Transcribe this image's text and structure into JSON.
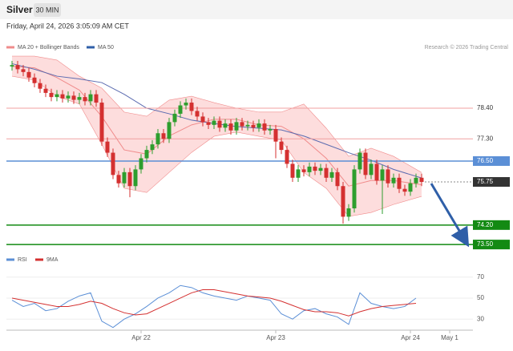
{
  "header": {
    "title": "Silver",
    "timeframe": "30 MIN",
    "timestamp": "Friday, April 24, 2026 3:05:09 AM CET",
    "credit": "Research © 2026 Trading Central"
  },
  "chart_data": [
    {
      "type": "candlestick",
      "xlim": [
        -1,
        79
      ],
      "ylim": [
        73.36,
        80.56
      ],
      "up_color": "#2e9e2e",
      "down_color": "#d43030",
      "open": [
        79.9,
        79.95,
        79.8,
        79.7,
        79.5,
        79.3,
        79.1,
        78.95,
        78.8,
        78.9,
        78.75,
        78.85,
        78.7,
        78.8,
        78.65,
        78.9,
        78.6,
        77.2,
        76.8,
        76.0,
        75.7,
        76.1,
        75.6,
        76.2,
        76.6,
        76.9,
        77.1,
        77.5,
        77.3,
        77.9,
        78.2,
        78.5,
        78.6,
        78.3,
        78.1,
        77.9,
        77.8,
        77.95,
        77.7,
        77.85,
        77.6,
        77.9,
        77.75,
        77.8,
        77.7,
        77.85,
        77.6,
        77.65,
        77.2,
        76.9,
        76.4,
        75.9,
        76.2,
        76.1,
        76.3,
        76.15,
        76.25,
        75.9,
        76.1,
        75.6,
        74.5,
        74.8,
        76.2,
        76.8,
        76.0,
        76.4,
        75.8,
        76.2,
        75.7,
        75.9,
        75.5,
        75.4,
        75.7,
        75.9
      ],
      "high": [
        80.1,
        80.1,
        79.95,
        79.85,
        79.65,
        79.45,
        79.25,
        79.1,
        79.05,
        79.05,
        79.0,
        79.0,
        78.95,
        78.95,
        79.05,
        79.05,
        78.75,
        77.35,
        76.95,
        76.15,
        76.25,
        76.25,
        76.35,
        76.75,
        77.05,
        77.25,
        77.65,
        77.65,
        78.05,
        78.35,
        78.65,
        78.75,
        78.75,
        78.45,
        78.25,
        78.05,
        78.1,
        78.1,
        78.0,
        78.0,
        78.05,
        78.05,
        77.95,
        77.95,
        78.0,
        78.0,
        77.8,
        77.8,
        77.35,
        77.05,
        76.55,
        76.35,
        76.35,
        76.45,
        76.45,
        76.4,
        76.4,
        76.25,
        76.25,
        75.75,
        74.95,
        76.35,
        76.95,
        76.95,
        76.55,
        76.55,
        76.35,
        76.35,
        76.05,
        76.05,
        75.65,
        75.85,
        76.05,
        76.05
      ],
      "low": [
        79.75,
        79.65,
        79.55,
        79.35,
        79.15,
        78.95,
        78.8,
        78.65,
        78.65,
        78.6,
        78.6,
        78.55,
        78.55,
        78.5,
        78.5,
        78.45,
        77.05,
        76.65,
        75.85,
        75.55,
        75.55,
        75.2,
        75.45,
        76.05,
        76.45,
        76.75,
        76.95,
        77.15,
        77.15,
        77.75,
        78.05,
        78.35,
        78.15,
        77.95,
        77.75,
        77.65,
        77.65,
        77.55,
        77.55,
        77.45,
        77.45,
        77.6,
        77.6,
        77.55,
        77.55,
        77.45,
        77.45,
        76.6,
        76.75,
        76.25,
        75.75,
        75.75,
        75.95,
        75.95,
        76.0,
        76.0,
        75.75,
        75.75,
        75.45,
        74.25,
        74.35,
        74.65,
        76.05,
        75.85,
        75.85,
        75.65,
        74.6,
        75.55,
        75.55,
        75.35,
        75.25,
        75.25,
        75.55,
        75.6
      ],
      "close": [
        79.95,
        79.8,
        79.7,
        79.5,
        79.3,
        79.1,
        78.95,
        78.8,
        78.9,
        78.75,
        78.85,
        78.7,
        78.8,
        78.65,
        78.9,
        78.6,
        77.2,
        76.8,
        76.0,
        75.7,
        76.1,
        75.6,
        76.2,
        76.6,
        76.9,
        77.1,
        77.5,
        77.3,
        77.9,
        78.2,
        78.5,
        78.6,
        78.3,
        78.1,
        77.9,
        77.8,
        77.95,
        77.7,
        77.85,
        77.6,
        77.9,
        77.75,
        77.8,
        77.7,
        77.85,
        77.6,
        77.65,
        77.2,
        76.9,
        76.4,
        75.9,
        76.2,
        76.1,
        76.3,
        76.15,
        76.25,
        75.9,
        76.1,
        75.6,
        74.5,
        74.8,
        76.2,
        76.8,
        76.0,
        76.4,
        75.8,
        76.2,
        75.7,
        75.9,
        75.5,
        75.4,
        75.7,
        75.9,
        75.75
      ],
      "bands": {
        "name": "MA 20 + Bollinger Bands",
        "color": "#f08c8c",
        "fill": "#fdd5d5",
        "x": [
          0,
          4,
          8,
          12,
          16,
          20,
          24,
          28,
          32,
          36,
          40,
          44,
          48,
          52,
          56,
          60,
          64,
          68,
          73
        ],
        "upper": [
          80.27,
          80.27,
          80.13,
          79.55,
          79.12,
          78.26,
          78.11,
          78.69,
          78.83,
          78.6,
          78.4,
          78.26,
          78.26,
          78.55,
          77.68,
          76.67,
          76.96,
          76.67,
          76.09
        ],
        "middle": [
          79.9,
          79.85,
          79.5,
          79.05,
          78.1,
          76.9,
          76.75,
          77.4,
          77.8,
          78.0,
          78.0,
          77.8,
          77.75,
          77.3,
          76.6,
          75.6,
          75.8,
          75.8,
          75.65
        ],
        "lower": [
          79.55,
          79.41,
          78.83,
          78.55,
          77.1,
          75.52,
          75.37,
          76.09,
          76.81,
          77.39,
          77.54,
          77.39,
          77.25,
          76.09,
          75.52,
          74.51,
          74.65,
          74.94,
          75.23
        ]
      },
      "ma50": {
        "name": "MA 50",
        "color": "#5b6bb0",
        "x": [
          0,
          4,
          8,
          12,
          16,
          20,
          24,
          28,
          32,
          36,
          40,
          44,
          48,
          52,
          56,
          60,
          64,
          68,
          73
        ],
        "values": [
          80.0,
          79.8,
          79.55,
          79.45,
          79.32,
          78.9,
          78.4,
          78.2,
          77.97,
          77.85,
          77.74,
          77.68,
          77.62,
          77.4,
          77.1,
          76.8,
          76.53,
          76.2,
          75.89
        ]
      },
      "levels": [
        {
          "value": 78.4,
          "label": "78.40",
          "color": "#f0a0a0",
          "filled": false
        },
        {
          "value": 77.3,
          "label": "77.30",
          "color": "#f0a0a0",
          "filled": false
        },
        {
          "value": 76.5,
          "label": "76.50",
          "color": "#5b8fd6",
          "filled": true
        },
        {
          "value": 75.75,
          "label": "75.75",
          "color": "#333333",
          "filled": true,
          "dotted": true
        },
        {
          "value": 74.2,
          "label": "74.20",
          "color": "#138a13",
          "filled": true
        },
        {
          "value": 73.5,
          "label": "73.50",
          "color": "#138a13",
          "filled": true
        }
      ]
    },
    {
      "type": "line",
      "xlim": [
        -1,
        79
      ],
      "ylim": [
        21,
        82
      ],
      "yticks": [
        30,
        50,
        70
      ],
      "xticks": [
        {
          "value": 23,
          "label": "Apr 22"
        },
        {
          "value": 47,
          "label": "Apr 23"
        },
        {
          "value": 71,
          "label": "Apr 24"
        },
        {
          "value": 78,
          "label": "May 1"
        }
      ],
      "x": [
        0,
        2,
        4,
        6,
        8,
        10,
        12,
        14,
        16,
        18,
        20,
        22,
        24,
        26,
        28,
        30,
        32,
        34,
        36,
        38,
        40,
        42,
        44,
        46,
        48,
        50,
        52,
        54,
        56,
        58,
        60,
        62,
        64,
        66,
        68,
        70,
        72
      ],
      "series": [
        {
          "name": "RSI",
          "color": "#5b8fd6",
          "values": [
            48,
            42,
            45,
            38,
            40,
            47,
            52,
            55,
            28,
            22,
            30,
            35,
            42,
            50,
            55,
            62,
            60,
            55,
            52,
            50,
            48,
            52,
            50,
            48,
            35,
            30,
            38,
            40,
            35,
            32,
            25,
            55,
            45,
            42,
            40,
            42,
            50
          ]
        },
        {
          "name": "9MA",
          "color": "#d43030",
          "values": [
            50,
            48,
            46,
            44,
            42,
            42,
            44,
            47,
            45,
            40,
            36,
            34,
            35,
            40,
            45,
            50,
            55,
            58,
            58,
            56,
            54,
            52,
            51,
            50,
            47,
            43,
            39,
            37,
            37,
            36,
            33,
            37,
            40,
            42,
            43,
            44,
            45
          ]
        }
      ]
    }
  ]
}
